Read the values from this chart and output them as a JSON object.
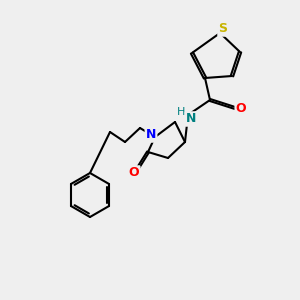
{
  "background_color": "#efefef",
  "bond_color": "#000000",
  "bond_width": 1.5,
  "atom_labels": {
    "S": {
      "color": "#c8b400",
      "fontsize": 9,
      "fontweight": "bold"
    },
    "N_blue": {
      "color": "#0000ff",
      "fontsize": 9,
      "fontweight": "bold"
    },
    "N_teal": {
      "color": "#008080",
      "fontsize": 9,
      "fontweight": "bold"
    },
    "O": {
      "color": "#ff0000",
      "fontsize": 9,
      "fontweight": "bold"
    },
    "H": {
      "color": "#008080",
      "fontsize": 8,
      "fontweight": "normal"
    }
  }
}
